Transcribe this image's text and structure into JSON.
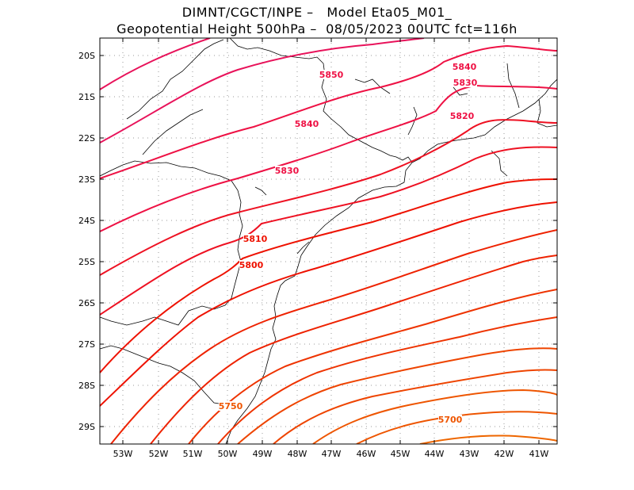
{
  "header": {
    "title_line1": "DIMNT/CGCT/INPE –   Model Eta05_M01_",
    "title_line2": "Geopotential Height 500hPa –  08/05/2023 00UTC fct=116h"
  },
  "axes": {
    "lat_labels": [
      "20S",
      "21S",
      "22S",
      "23S",
      "24S",
      "25S",
      "26S",
      "27S",
      "28S",
      "29S"
    ],
    "lon_labels": [
      "53W",
      "52W",
      "51W",
      "50W",
      "49W",
      "48W",
      "47W",
      "46W",
      "45W",
      "44W",
      "43W",
      "42W",
      "41W"
    ],
    "lat_range": [
      -29.4,
      -19.6
    ],
    "lon_range": [
      -53.7,
      -40.6
    ]
  },
  "chart_data": {
    "type": "contour",
    "variable": "Geopotential Height 500hPa",
    "grid": true,
    "contour_labels": [
      {
        "text": "5850",
        "color": "#ee1144"
      },
      {
        "text": "5840",
        "color": "#ee1144"
      },
      {
        "text": "5840",
        "color": "#ee1144"
      },
      {
        "text": "5830",
        "color": "#ee1144"
      },
      {
        "text": "5830",
        "color": "#ee1144"
      },
      {
        "text": "5820",
        "color": "#ee1144"
      },
      {
        "text": "5810",
        "color": "#ee1100"
      },
      {
        "text": "5800",
        "color": "#ee1100"
      },
      {
        "text": "5750",
        "color": "#ee5500"
      },
      {
        "text": "5700",
        "color": "#ee5500"
      }
    ]
  }
}
